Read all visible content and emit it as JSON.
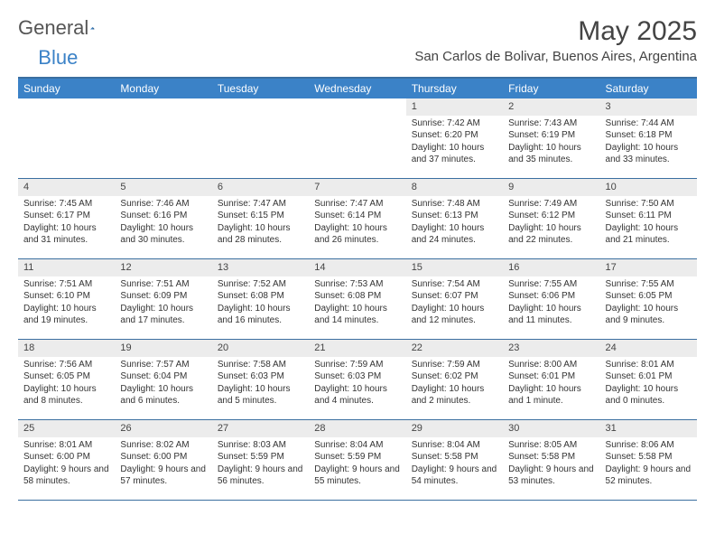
{
  "logo": {
    "text1": "General",
    "text2": "Blue"
  },
  "title": "May 2025",
  "location": "San Carlos de Bolivar, Buenos Aires, Argentina",
  "colors": {
    "header_bg": "#3b82c7",
    "border": "#3b6fa0",
    "daynum_bg": "#ececec",
    "text": "#333333"
  },
  "weekdays": [
    "Sunday",
    "Monday",
    "Tuesday",
    "Wednesday",
    "Thursday",
    "Friday",
    "Saturday"
  ],
  "weeks": [
    [
      {
        "n": "",
        "sr": "",
        "ss": "",
        "dl": ""
      },
      {
        "n": "",
        "sr": "",
        "ss": "",
        "dl": ""
      },
      {
        "n": "",
        "sr": "",
        "ss": "",
        "dl": ""
      },
      {
        "n": "",
        "sr": "",
        "ss": "",
        "dl": ""
      },
      {
        "n": "1",
        "sr": "Sunrise: 7:42 AM",
        "ss": "Sunset: 6:20 PM",
        "dl": "Daylight: 10 hours and 37 minutes."
      },
      {
        "n": "2",
        "sr": "Sunrise: 7:43 AM",
        "ss": "Sunset: 6:19 PM",
        "dl": "Daylight: 10 hours and 35 minutes."
      },
      {
        "n": "3",
        "sr": "Sunrise: 7:44 AM",
        "ss": "Sunset: 6:18 PM",
        "dl": "Daylight: 10 hours and 33 minutes."
      }
    ],
    [
      {
        "n": "4",
        "sr": "Sunrise: 7:45 AM",
        "ss": "Sunset: 6:17 PM",
        "dl": "Daylight: 10 hours and 31 minutes."
      },
      {
        "n": "5",
        "sr": "Sunrise: 7:46 AM",
        "ss": "Sunset: 6:16 PM",
        "dl": "Daylight: 10 hours and 30 minutes."
      },
      {
        "n": "6",
        "sr": "Sunrise: 7:47 AM",
        "ss": "Sunset: 6:15 PM",
        "dl": "Daylight: 10 hours and 28 minutes."
      },
      {
        "n": "7",
        "sr": "Sunrise: 7:47 AM",
        "ss": "Sunset: 6:14 PM",
        "dl": "Daylight: 10 hours and 26 minutes."
      },
      {
        "n": "8",
        "sr": "Sunrise: 7:48 AM",
        "ss": "Sunset: 6:13 PM",
        "dl": "Daylight: 10 hours and 24 minutes."
      },
      {
        "n": "9",
        "sr": "Sunrise: 7:49 AM",
        "ss": "Sunset: 6:12 PM",
        "dl": "Daylight: 10 hours and 22 minutes."
      },
      {
        "n": "10",
        "sr": "Sunrise: 7:50 AM",
        "ss": "Sunset: 6:11 PM",
        "dl": "Daylight: 10 hours and 21 minutes."
      }
    ],
    [
      {
        "n": "11",
        "sr": "Sunrise: 7:51 AM",
        "ss": "Sunset: 6:10 PM",
        "dl": "Daylight: 10 hours and 19 minutes."
      },
      {
        "n": "12",
        "sr": "Sunrise: 7:51 AM",
        "ss": "Sunset: 6:09 PM",
        "dl": "Daylight: 10 hours and 17 minutes."
      },
      {
        "n": "13",
        "sr": "Sunrise: 7:52 AM",
        "ss": "Sunset: 6:08 PM",
        "dl": "Daylight: 10 hours and 16 minutes."
      },
      {
        "n": "14",
        "sr": "Sunrise: 7:53 AM",
        "ss": "Sunset: 6:08 PM",
        "dl": "Daylight: 10 hours and 14 minutes."
      },
      {
        "n": "15",
        "sr": "Sunrise: 7:54 AM",
        "ss": "Sunset: 6:07 PM",
        "dl": "Daylight: 10 hours and 12 minutes."
      },
      {
        "n": "16",
        "sr": "Sunrise: 7:55 AM",
        "ss": "Sunset: 6:06 PM",
        "dl": "Daylight: 10 hours and 11 minutes."
      },
      {
        "n": "17",
        "sr": "Sunrise: 7:55 AM",
        "ss": "Sunset: 6:05 PM",
        "dl": "Daylight: 10 hours and 9 minutes."
      }
    ],
    [
      {
        "n": "18",
        "sr": "Sunrise: 7:56 AM",
        "ss": "Sunset: 6:05 PM",
        "dl": "Daylight: 10 hours and 8 minutes."
      },
      {
        "n": "19",
        "sr": "Sunrise: 7:57 AM",
        "ss": "Sunset: 6:04 PM",
        "dl": "Daylight: 10 hours and 6 minutes."
      },
      {
        "n": "20",
        "sr": "Sunrise: 7:58 AM",
        "ss": "Sunset: 6:03 PM",
        "dl": "Daylight: 10 hours and 5 minutes."
      },
      {
        "n": "21",
        "sr": "Sunrise: 7:59 AM",
        "ss": "Sunset: 6:03 PM",
        "dl": "Daylight: 10 hours and 4 minutes."
      },
      {
        "n": "22",
        "sr": "Sunrise: 7:59 AM",
        "ss": "Sunset: 6:02 PM",
        "dl": "Daylight: 10 hours and 2 minutes."
      },
      {
        "n": "23",
        "sr": "Sunrise: 8:00 AM",
        "ss": "Sunset: 6:01 PM",
        "dl": "Daylight: 10 hours and 1 minute."
      },
      {
        "n": "24",
        "sr": "Sunrise: 8:01 AM",
        "ss": "Sunset: 6:01 PM",
        "dl": "Daylight: 10 hours and 0 minutes."
      }
    ],
    [
      {
        "n": "25",
        "sr": "Sunrise: 8:01 AM",
        "ss": "Sunset: 6:00 PM",
        "dl": "Daylight: 9 hours and 58 minutes."
      },
      {
        "n": "26",
        "sr": "Sunrise: 8:02 AM",
        "ss": "Sunset: 6:00 PM",
        "dl": "Daylight: 9 hours and 57 minutes."
      },
      {
        "n": "27",
        "sr": "Sunrise: 8:03 AM",
        "ss": "Sunset: 5:59 PM",
        "dl": "Daylight: 9 hours and 56 minutes."
      },
      {
        "n": "28",
        "sr": "Sunrise: 8:04 AM",
        "ss": "Sunset: 5:59 PM",
        "dl": "Daylight: 9 hours and 55 minutes."
      },
      {
        "n": "29",
        "sr": "Sunrise: 8:04 AM",
        "ss": "Sunset: 5:58 PM",
        "dl": "Daylight: 9 hours and 54 minutes."
      },
      {
        "n": "30",
        "sr": "Sunrise: 8:05 AM",
        "ss": "Sunset: 5:58 PM",
        "dl": "Daylight: 9 hours and 53 minutes."
      },
      {
        "n": "31",
        "sr": "Sunrise: 8:06 AM",
        "ss": "Sunset: 5:58 PM",
        "dl": "Daylight: 9 hours and 52 minutes."
      }
    ]
  ]
}
